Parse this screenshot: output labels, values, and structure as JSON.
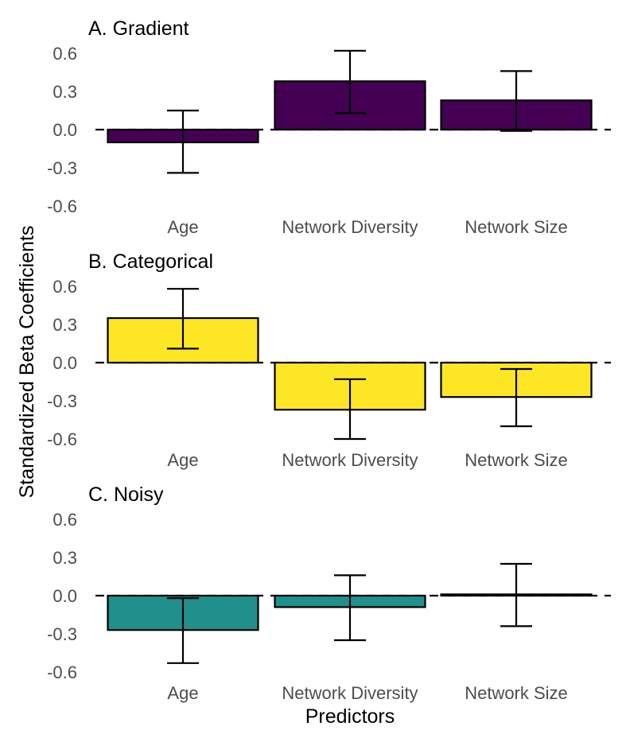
{
  "chart_data": {
    "type": "bar",
    "ylabel": "Standardized Beta Coefficients",
    "xlabel": "Predictors",
    "ylim": [
      -0.6,
      0.6
    ],
    "yticks": [
      0.6,
      0.3,
      0.0,
      -0.3,
      -0.6
    ],
    "ytick_labels": [
      "0.6",
      "0.3",
      "0.0",
      "-0.3",
      "-0.6"
    ],
    "categories": [
      "Age",
      "Network Diversity",
      "Network Size"
    ],
    "reference_line": 0,
    "panels": [
      {
        "title": "A. Gradient",
        "color": "#440154",
        "values": [
          -0.1,
          0.38,
          0.23
        ],
        "ci_low": [
          -0.34,
          0.13,
          -0.01
        ],
        "ci_high": [
          0.15,
          0.62,
          0.46
        ]
      },
      {
        "title": "B. Categorical",
        "color": "#FDE725",
        "values": [
          0.35,
          -0.37,
          -0.27
        ],
        "ci_low": [
          0.11,
          -0.6,
          -0.5
        ],
        "ci_high": [
          0.58,
          -0.13,
          -0.05
        ]
      },
      {
        "title": "C. Noisy",
        "color": "#21908C",
        "values": [
          -0.27,
          -0.09,
          0.01
        ],
        "ci_low": [
          -0.53,
          -0.35,
          -0.24
        ],
        "ci_high": [
          -0.02,
          0.16,
          0.25
        ]
      }
    ]
  }
}
